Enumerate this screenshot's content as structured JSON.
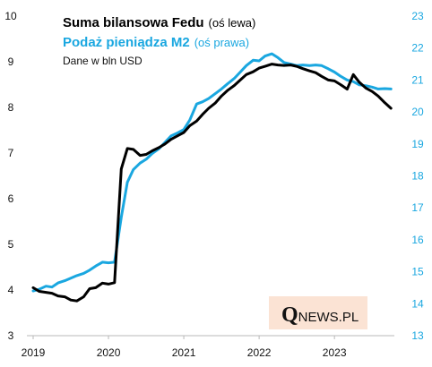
{
  "chart_data": {
    "type": "line",
    "legend": [
      {
        "label": "Suma bilansowa Fedu",
        "axis_note": "(oś lewa)",
        "color": "#000000"
      },
      {
        "label": "Podaż pieniądza M2",
        "axis_note": "(oś prawa)",
        "color": "#1aa7e0"
      }
    ],
    "note": "Dane w bln USD",
    "logo": {
      "q": "Q",
      "rest": "NEWS.PL",
      "background": "#fbe3d4"
    },
    "x_ticks": [
      "2019",
      "2020",
      "2021",
      "2022",
      "2023"
    ],
    "y_left": {
      "ticks": [
        "3",
        "4",
        "5",
        "6",
        "7",
        "8",
        "9",
        "10"
      ],
      "lim": [
        3,
        10
      ]
    },
    "y_right": {
      "ticks": [
        "13",
        "14",
        "15",
        "16",
        "17",
        "18",
        "19",
        "20",
        "21",
        "22",
        "23"
      ],
      "lim": [
        13,
        23
      ]
    },
    "x_lim": [
      2019,
      2023.95
    ],
    "series": [
      {
        "name": "Suma bilansowa Fedu",
        "axis": "left",
        "color": "#000000",
        "x": [
          2019.0,
          2019.08,
          2019.17,
          2019.25,
          2019.33,
          2019.42,
          2019.5,
          2019.58,
          2019.67,
          2019.75,
          2019.83,
          2019.92,
          2020.0,
          2020.08,
          2020.17,
          2020.25,
          2020.33,
          2020.42,
          2020.5,
          2020.58,
          2020.67,
          2020.75,
          2020.83,
          2020.92,
          2021.0,
          2021.08,
          2021.17,
          2021.25,
          2021.33,
          2021.42,
          2021.5,
          2021.58,
          2021.67,
          2021.75,
          2021.83,
          2021.92,
          2022.0,
          2022.08,
          2022.17,
          2022.25,
          2022.33,
          2022.42,
          2022.5,
          2022.58,
          2022.67,
          2022.75,
          2022.83,
          2022.92,
          2023.0,
          2023.08,
          2023.17,
          2023.25,
          2023.33,
          2023.42,
          2023.5,
          2023.58,
          2023.67,
          2023.75
        ],
        "values": [
          4.05,
          3.97,
          3.95,
          3.93,
          3.87,
          3.85,
          3.78,
          3.76,
          3.85,
          4.03,
          4.05,
          4.15,
          4.13,
          4.16,
          6.65,
          7.1,
          7.08,
          6.95,
          6.97,
          7.05,
          7.12,
          7.2,
          7.3,
          7.38,
          7.45,
          7.6,
          7.7,
          7.85,
          7.98,
          8.1,
          8.25,
          8.37,
          8.48,
          8.6,
          8.72,
          8.78,
          8.86,
          8.9,
          8.95,
          8.93,
          8.92,
          8.93,
          8.9,
          8.85,
          8.8,
          8.76,
          8.68,
          8.6,
          8.58,
          8.5,
          8.4,
          8.72,
          8.55,
          8.42,
          8.35,
          8.25,
          8.1,
          7.98
        ]
      },
      {
        "name": "Podaż pieniądza M2",
        "axis": "right",
        "color": "#1aa7e0",
        "x": [
          2019.0,
          2019.08,
          2019.17,
          2019.25,
          2019.33,
          2019.42,
          2019.5,
          2019.58,
          2019.67,
          2019.75,
          2019.83,
          2019.92,
          2020.0,
          2020.08,
          2020.17,
          2020.25,
          2020.33,
          2020.42,
          2020.5,
          2020.58,
          2020.67,
          2020.75,
          2020.83,
          2020.92,
          2021.0,
          2021.08,
          2021.17,
          2021.25,
          2021.33,
          2021.42,
          2021.5,
          2021.58,
          2021.67,
          2021.75,
          2021.83,
          2021.92,
          2022.0,
          2022.08,
          2022.17,
          2022.25,
          2022.33,
          2022.42,
          2022.5,
          2022.58,
          2022.67,
          2022.75,
          2022.83,
          2022.92,
          2023.0,
          2023.08,
          2023.17,
          2023.25,
          2023.33,
          2023.42,
          2023.5,
          2023.58,
          2023.67,
          2023.75
        ],
        "values": [
          14.4,
          14.45,
          14.55,
          14.52,
          14.65,
          14.72,
          14.8,
          14.88,
          14.95,
          15.05,
          15.18,
          15.3,
          15.28,
          15.3,
          16.7,
          17.8,
          18.2,
          18.4,
          18.52,
          18.7,
          18.85,
          19.05,
          19.25,
          19.35,
          19.45,
          19.75,
          20.25,
          20.32,
          20.42,
          20.58,
          20.72,
          20.88,
          21.05,
          21.25,
          21.45,
          21.62,
          21.6,
          21.75,
          21.82,
          21.7,
          21.55,
          21.5,
          21.45,
          21.47,
          21.45,
          21.47,
          21.45,
          21.35,
          21.25,
          21.12,
          21.0,
          20.95,
          20.85,
          20.82,
          20.78,
          20.72,
          20.73,
          20.72
        ]
      }
    ]
  }
}
